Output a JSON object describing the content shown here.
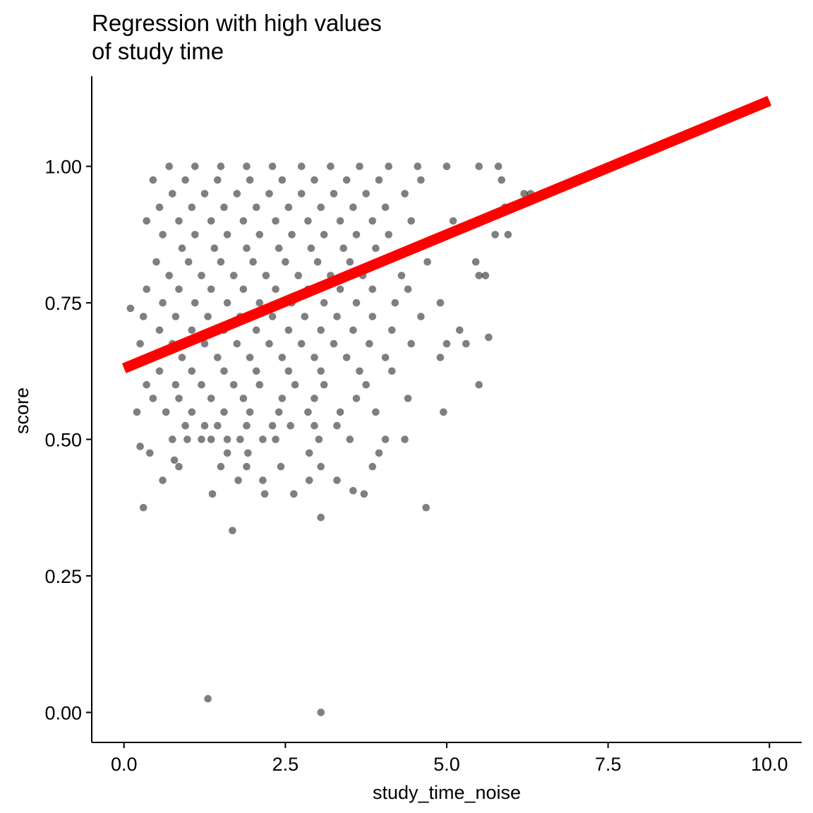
{
  "chart_data": {
    "type": "scatter",
    "title_lines": [
      "Regression with high values",
      "of study time"
    ],
    "xlabel": "study_time_noise",
    "ylabel": "score",
    "xlim": [
      -0.5,
      10.5
    ],
    "ylim": [
      -0.055,
      1.165
    ],
    "x_ticks": [
      0.0,
      2.5,
      5.0,
      7.5,
      10.0
    ],
    "x_tick_labels": [
      "0.0",
      "2.5",
      "5.0",
      "7.5",
      "10.0"
    ],
    "y_ticks": [
      0.0,
      0.25,
      0.5,
      0.75,
      1.0
    ],
    "y_tick_labels": [
      "0.00",
      "0.25",
      "0.50",
      "0.75",
      "1.00"
    ],
    "grid": false,
    "point_color": "#000000",
    "point_opacity": 0.5,
    "regression_line": {
      "color": "#ff0000",
      "x": [
        0.0,
        10.0
      ],
      "y": [
        0.63,
        1.12
      ]
    },
    "points_sample": [
      [
        1.3,
        0.025
      ],
      [
        3.05,
        0.0
      ],
      [
        1.68,
        0.333
      ],
      [
        3.05,
        0.357
      ],
      [
        0.3,
        0.375
      ],
      [
        4.68,
        0.375
      ],
      [
        1.37,
        0.4
      ],
      [
        2.18,
        0.4
      ],
      [
        2.63,
        0.4
      ],
      [
        3.72,
        0.4
      ],
      [
        3.55,
        0.406
      ],
      [
        0.6,
        0.425
      ],
      [
        1.77,
        0.425
      ],
      [
        2.15,
        0.425
      ],
      [
        2.87,
        0.425
      ],
      [
        3.3,
        0.425
      ],
      [
        0.85,
        0.45
      ],
      [
        1.5,
        0.45
      ],
      [
        1.9,
        0.45
      ],
      [
        2.43,
        0.45
      ],
      [
        3.05,
        0.45
      ],
      [
        3.85,
        0.45
      ],
      [
        0.78,
        0.462
      ],
      [
        0.4,
        0.475
      ],
      [
        1.6,
        0.475
      ],
      [
        1.92,
        0.475
      ],
      [
        2.87,
        0.475
      ],
      [
        3.95,
        0.475
      ],
      [
        0.25,
        0.487
      ],
      [
        0.75,
        0.5
      ],
      [
        0.98,
        0.5
      ],
      [
        1.2,
        0.5
      ],
      [
        1.35,
        0.5
      ],
      [
        1.6,
        0.5
      ],
      [
        1.8,
        0.5
      ],
      [
        2.15,
        0.5
      ],
      [
        2.35,
        0.5
      ],
      [
        3.02,
        0.5
      ],
      [
        3.5,
        0.5
      ],
      [
        4.35,
        0.5
      ],
      [
        0.95,
        0.525
      ],
      [
        1.25,
        0.525
      ],
      [
        1.45,
        0.525
      ],
      [
        1.9,
        0.525
      ],
      [
        2.3,
        0.525
      ],
      [
        2.58,
        0.525
      ],
      [
        2.95,
        0.525
      ],
      [
        3.3,
        0.525
      ],
      [
        0.2,
        0.55
      ],
      [
        0.65,
        0.55
      ],
      [
        1.05,
        0.55
      ],
      [
        1.55,
        0.55
      ],
      [
        1.95,
        0.55
      ],
      [
        2.4,
        0.55
      ],
      [
        2.85,
        0.55
      ],
      [
        3.35,
        0.55
      ],
      [
        3.9,
        0.55
      ],
      [
        4.95,
        0.55
      ],
      [
        0.45,
        0.575
      ],
      [
        0.85,
        0.575
      ],
      [
        1.35,
        0.575
      ],
      [
        1.85,
        0.575
      ],
      [
        2.45,
        0.575
      ],
      [
        2.95,
        0.575
      ],
      [
        3.6,
        0.575
      ],
      [
        4.4,
        0.575
      ],
      [
        0.35,
        0.6
      ],
      [
        0.8,
        0.6
      ],
      [
        1.2,
        0.6
      ],
      [
        1.7,
        0.6
      ],
      [
        2.1,
        0.6
      ],
      [
        2.65,
        0.6
      ],
      [
        3.1,
        0.6
      ],
      [
        3.75,
        0.6
      ],
      [
        5.5,
        0.6
      ],
      [
        0.55,
        0.625
      ],
      [
        1.05,
        0.625
      ],
      [
        1.55,
        0.625
      ],
      [
        2.05,
        0.625
      ],
      [
        2.55,
        0.625
      ],
      [
        3.05,
        0.625
      ],
      [
        3.65,
        0.625
      ],
      [
        4.15,
        0.625
      ],
      [
        0.4,
        0.65
      ],
      [
        0.9,
        0.65
      ],
      [
        1.45,
        0.65
      ],
      [
        1.95,
        0.65
      ],
      [
        2.45,
        0.65
      ],
      [
        2.95,
        0.65
      ],
      [
        3.45,
        0.65
      ],
      [
        4.05,
        0.65
      ],
      [
        4.9,
        0.65
      ],
      [
        0.25,
        0.675
      ],
      [
        0.75,
        0.675
      ],
      [
        1.25,
        0.675
      ],
      [
        1.75,
        0.675
      ],
      [
        2.25,
        0.675
      ],
      [
        2.75,
        0.675
      ],
      [
        3.25,
        0.675
      ],
      [
        3.8,
        0.675
      ],
      [
        4.45,
        0.675
      ],
      [
        5.0,
        0.675
      ],
      [
        0.55,
        0.7
      ],
      [
        1.05,
        0.7
      ],
      [
        1.55,
        0.7
      ],
      [
        2.05,
        0.7
      ],
      [
        2.55,
        0.7
      ],
      [
        3.05,
        0.7
      ],
      [
        3.55,
        0.7
      ],
      [
        4.15,
        0.7
      ],
      [
        0.3,
        0.725
      ],
      [
        0.8,
        0.725
      ],
      [
        1.3,
        0.725
      ],
      [
        1.8,
        0.725
      ],
      [
        2.3,
        0.725
      ],
      [
        2.8,
        0.725
      ],
      [
        3.3,
        0.725
      ],
      [
        3.85,
        0.725
      ],
      [
        4.6,
        0.725
      ],
      [
        0.1,
        0.74
      ],
      [
        0.6,
        0.75
      ],
      [
        1.1,
        0.75
      ],
      [
        1.6,
        0.75
      ],
      [
        2.1,
        0.75
      ],
      [
        2.6,
        0.75
      ],
      [
        3.1,
        0.75
      ],
      [
        3.6,
        0.75
      ],
      [
        4.2,
        0.75
      ],
      [
        4.9,
        0.75
      ],
      [
        0.35,
        0.775
      ],
      [
        0.85,
        0.775
      ],
      [
        1.35,
        0.775
      ],
      [
        1.85,
        0.775
      ],
      [
        2.35,
        0.775
      ],
      [
        2.85,
        0.775
      ],
      [
        3.35,
        0.775
      ],
      [
        3.85,
        0.775
      ],
      [
        4.4,
        0.775
      ],
      [
        0.7,
        0.8
      ],
      [
        1.2,
        0.8
      ],
      [
        1.7,
        0.8
      ],
      [
        2.2,
        0.8
      ],
      [
        2.7,
        0.8
      ],
      [
        3.2,
        0.8
      ],
      [
        3.7,
        0.8
      ],
      [
        4.3,
        0.8
      ],
      [
        5.5,
        0.8
      ],
      [
        0.5,
        0.825
      ],
      [
        1.0,
        0.825
      ],
      [
        1.5,
        0.825
      ],
      [
        2.0,
        0.825
      ],
      [
        2.5,
        0.825
      ],
      [
        3.0,
        0.825
      ],
      [
        3.5,
        0.825
      ],
      [
        4.0,
        0.825
      ],
      [
        4.7,
        0.825
      ],
      [
        0.9,
        0.85
      ],
      [
        1.4,
        0.85
      ],
      [
        1.9,
        0.85
      ],
      [
        2.4,
        0.85
      ],
      [
        2.9,
        0.85
      ],
      [
        3.4,
        0.85
      ],
      [
        3.9,
        0.85
      ],
      [
        4.5,
        0.85
      ],
      [
        0.6,
        0.875
      ],
      [
        1.1,
        0.875
      ],
      [
        1.6,
        0.875
      ],
      [
        2.1,
        0.875
      ],
      [
        2.6,
        0.875
      ],
      [
        3.1,
        0.875
      ],
      [
        3.6,
        0.875
      ],
      [
        4.1,
        0.875
      ],
      [
        5.75,
        0.875
      ],
      [
        0.35,
        0.9
      ],
      [
        0.85,
        0.9
      ],
      [
        1.35,
        0.9
      ],
      [
        1.85,
        0.9
      ],
      [
        2.35,
        0.9
      ],
      [
        2.85,
        0.9
      ],
      [
        3.35,
        0.9
      ],
      [
        3.85,
        0.9
      ],
      [
        4.45,
        0.9
      ],
      [
        5.1,
        0.9
      ],
      [
        0.55,
        0.925
      ],
      [
        1.05,
        0.925
      ],
      [
        1.55,
        0.925
      ],
      [
        2.05,
        0.925
      ],
      [
        2.55,
        0.925
      ],
      [
        3.05,
        0.925
      ],
      [
        3.55,
        0.925
      ],
      [
        4.05,
        0.925
      ],
      [
        5.9,
        0.925
      ],
      [
        0.75,
        0.95
      ],
      [
        1.25,
        0.95
      ],
      [
        1.75,
        0.95
      ],
      [
        2.25,
        0.95
      ],
      [
        2.75,
        0.95
      ],
      [
        3.25,
        0.95
      ],
      [
        3.75,
        0.95
      ],
      [
        4.35,
        0.95
      ],
      [
        6.2,
        0.95
      ],
      [
        0.45,
        0.975
      ],
      [
        0.95,
        0.975
      ],
      [
        1.45,
        0.975
      ],
      [
        1.95,
        0.975
      ],
      [
        2.45,
        0.975
      ],
      [
        2.95,
        0.975
      ],
      [
        3.45,
        0.975
      ],
      [
        3.95,
        0.975
      ],
      [
        4.6,
        0.975
      ],
      [
        5.85,
        0.975
      ],
      [
        0.7,
        1.0
      ],
      [
        1.1,
        1.0
      ],
      [
        1.5,
        1.0
      ],
      [
        1.9,
        1.0
      ],
      [
        2.3,
        1.0
      ],
      [
        2.75,
        1.0
      ],
      [
        3.2,
        1.0
      ],
      [
        3.65,
        1.0
      ],
      [
        4.1,
        1.0
      ],
      [
        4.55,
        1.0
      ],
      [
        5.0,
        1.0
      ],
      [
        5.5,
        1.0
      ],
      [
        5.8,
        1.0
      ],
      [
        6.3,
        0.95
      ],
      [
        5.6,
        0.8
      ],
      [
        5.45,
        0.825
      ],
      [
        5.95,
        0.875
      ],
      [
        5.3,
        0.675
      ],
      [
        5.65,
        0.687
      ],
      [
        5.2,
        0.7
      ],
      [
        4.05,
        0.5
      ]
    ]
  }
}
